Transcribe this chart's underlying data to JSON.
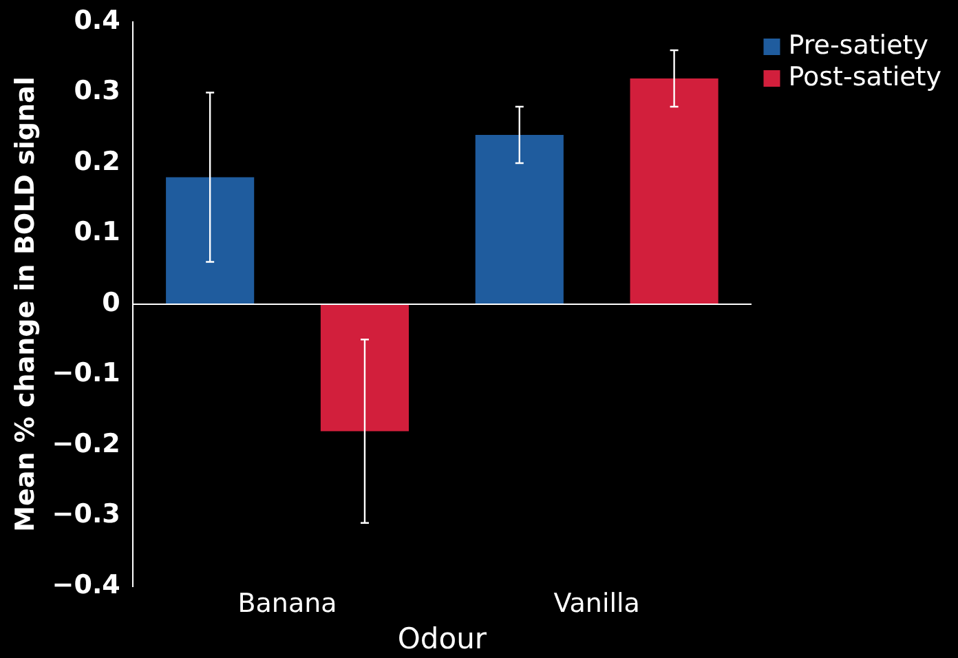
{
  "chart_data": {
    "type": "bar",
    "xlabel": "Odour",
    "ylabel": "Mean % change in BOLD signal",
    "categories": [
      "Banana",
      "Vanilla"
    ],
    "series": [
      {
        "name": "Pre-satiety",
        "color": "#1f5c9e",
        "values": [
          0.18,
          0.24
        ],
        "errors": [
          0.12,
          0.04
        ]
      },
      {
        "name": "Post-satiety",
        "color": "#d21f3c",
        "values": [
          -0.18,
          0.32
        ],
        "errors": [
          0.13,
          0.04
        ]
      }
    ],
    "ylim": [
      -0.4,
      0.4
    ],
    "yticks": [
      {
        "value": -0.4,
        "label": "−0.4"
      },
      {
        "value": -0.3,
        "label": "−0.3"
      },
      {
        "value": -0.2,
        "label": "−0.2"
      },
      {
        "value": -0.1,
        "label": "−0.1"
      },
      0,
      0.1,
      0.2,
      0.3,
      0.4
    ],
    "ref_lines": [
      {
        "axis": "y",
        "value": 0,
        "color": "#ffffff"
      }
    ],
    "grid": false,
    "legend": "top right"
  }
}
